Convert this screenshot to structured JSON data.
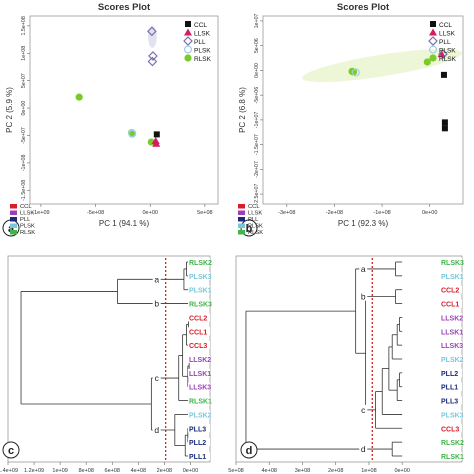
{
  "colors": {
    "CCL": "#111111",
    "LLSK": "#d81b60",
    "PLL": "#7b6fb0",
    "PLSK": "#9ecfe3",
    "RLSK": "#7acb2a",
    "dend_CCL": "#d71f2a",
    "dend_LLSK": "#9a3fb6",
    "dend_PLL": "#1b2a7c",
    "dend_PLSK": "#78c8dc",
    "dend_RLSK": "#3fb54a",
    "cutline": "#d01010",
    "plot_bg": "#ffffff",
    "border": "#9a9a9a"
  },
  "panel_labels": [
    "a",
    "b",
    "c",
    "d"
  ],
  "chart_data": [
    {
      "type": "scatter",
      "title": "Scores Plot",
      "xlabel": "PC 1 (94.1 %)",
      "ylabel": "PC 2 (5.9 %)",
      "xlim": [
        -1100000000.0,
        620000000.0
      ],
      "ylim": [
        -175000000.0,
        168000000.0
      ],
      "xticks": [
        -1000000000,
        -500000000,
        0,
        500000000
      ],
      "xtick_labels": [
        "-1e+09",
        "-5e+08",
        "0e+00",
        "5e+08"
      ],
      "yticks": [
        150000000,
        100000000,
        50000000,
        0,
        -50000000,
        -100000000,
        -150000000
      ],
      "ytick_labels": [
        "1.5e+08",
        "1e+08",
        "5e+07",
        "0e+00",
        "-5e+07",
        "-1e+08",
        "-1.5e+08"
      ],
      "legend": [
        "CCL",
        "LLSK",
        "PLL",
        "PLSK",
        "RLSK"
      ],
      "legend_position": "top-right",
      "ellipse": {
        "cx": 20000000,
        "cy": 130000000,
        "rx": 40000000,
        "ry": 20000000,
        "color": "#d6d6e8"
      },
      "points": [
        {
          "group": "RLSK",
          "x": -650000000,
          "y": 20000000
        },
        {
          "group": "RLSK",
          "x": -170000000,
          "y": -45000000
        },
        {
          "group": "RLSK",
          "x": -170000000,
          "y": -45000000
        },
        {
          "group": "RLSK",
          "x": 10000000,
          "y": -62000000
        },
        {
          "group": "PLSK",
          "x": -165000000,
          "y": -46000000
        },
        {
          "group": "PLSK",
          "x": -165000000,
          "y": -47000000
        },
        {
          "group": "PLL",
          "x": 15000000,
          "y": 140000000
        },
        {
          "group": "PLL",
          "x": 20000000,
          "y": 85000000
        },
        {
          "group": "PLL",
          "x": 25000000,
          "y": 95000000
        },
        {
          "group": "CCL",
          "x": 60000000,
          "y": -48000000
        },
        {
          "group": "LLSK",
          "x": 55000000,
          "y": -65000000
        },
        {
          "group": "LLSK",
          "x": 50000000,
          "y": -60000000
        }
      ]
    },
    {
      "type": "scatter",
      "title": "Scores Plot",
      "xlabel": "PC 1 (92.3 %)",
      "ylabel": "PC 2 (6.8 %)",
      "xlim": [
        -350000000.0,
        70000000.0
      ],
      "ylim": [
        -27000000.0,
        11000000.0
      ],
      "xticks": [
        -300000000,
        -200000000,
        -100000000,
        0
      ],
      "xtick_labels": [
        "-3e+08",
        "-2e+08",
        "-1e+08",
        "0e+00"
      ],
      "yticks": [
        10000000,
        5000000,
        0,
        -5000000,
        -10000000,
        -15000000,
        -20000000,
        -25000000
      ],
      "ytick_labels": [
        "1e+07",
        "5e+06",
        "0e+00",
        "-5e+06",
        "-1e+07",
        "-1.5e+07",
        "-2e+07",
        "-2.5e+07"
      ],
      "legend": [
        "CCL",
        "LLSK",
        "PLL",
        "PLSK",
        "RLSK"
      ],
      "legend_position": "top-right",
      "ellipse": {
        "cx": -100000000,
        "cy": 1000000,
        "rx": 170000000,
        "ry": 2200000,
        "color": "#e6f3c8",
        "angle": -9
      },
      "points": [
        {
          "group": "RLSK",
          "x": -160000000,
          "y": -300000
        },
        {
          "group": "RLSK",
          "x": -5000000,
          "y": 1700000
        },
        {
          "group": "RLSK",
          "x": -163000000,
          "y": -200000
        },
        {
          "group": "PLSK",
          "x": -155000000,
          "y": -400000
        },
        {
          "group": "LLSK",
          "x": 25000000,
          "y": 3300000
        },
        {
          "group": "PLL",
          "x": 28000000,
          "y": 3300000
        },
        {
          "group": "CCL",
          "x": 30000000,
          "y": -900000
        },
        {
          "group": "CCL",
          "x": 32000000,
          "y": -10500000
        },
        {
          "group": "CCL",
          "x": 32000000,
          "y": -11700000
        }
      ]
    },
    {
      "type": "dendrogram",
      "orientation": "horizontal",
      "xlim": [
        1400000000.0,
        -150000000.0
      ],
      "xticks": [
        1400000000,
        1200000000,
        1000000000,
        800000000,
        600000000,
        400000000,
        200000000,
        0
      ],
      "xtick_labels": [
        "1.4e+09",
        "1.2e+09",
        "1e+09",
        "8e+08",
        "6e+08",
        "4e+08",
        "2e+08",
        "0e+00"
      ],
      "cut_height": 190000000,
      "legend": [
        "CCL",
        "LLSK",
        "PLL",
        "PLSK",
        "RLSK"
      ],
      "legend_position": "top-left",
      "leaves": [
        {
          "label": "RLSK2",
          "group": "RLSK"
        },
        {
          "label": "PLSK3",
          "group": "PLSK"
        },
        {
          "label": "PLSK1",
          "group": "PLSK"
        },
        {
          "label": "RLSK3",
          "group": "RLSK"
        },
        {
          "label": "CCL2",
          "group": "CCL"
        },
        {
          "label": "CCL1",
          "group": "CCL"
        },
        {
          "label": "CCL3",
          "group": "CCL"
        },
        {
          "label": "LLSK2",
          "group": "LLSK"
        },
        {
          "label": "LLSK1",
          "group": "LLSK"
        },
        {
          "label": "LLSK3",
          "group": "LLSK"
        },
        {
          "label": "RLSK1",
          "group": "RLSK"
        },
        {
          "label": "PLSK2",
          "group": "PLSK"
        },
        {
          "label": "PLL3",
          "group": "PLL"
        },
        {
          "label": "PLL2",
          "group": "PLL"
        },
        {
          "label": "PLL1",
          "group": "PLL"
        }
      ],
      "merges": [
        [
          0,
          1,
          30000000
        ],
        [
          15,
          2,
          50000000
        ],
        [
          4,
          5,
          15000000
        ],
        [
          17,
          6,
          30000000
        ],
        [
          7,
          8,
          10000000
        ],
        [
          19,
          9,
          20000000
        ],
        [
          18,
          20,
          60000000
        ],
        [
          21,
          10,
          90000000
        ],
        [
          12,
          13,
          20000000
        ],
        [
          23,
          14,
          40000000
        ],
        [
          11,
          24,
          120000000
        ],
        [
          22,
          25,
          300000000
        ],
        [
          16,
          3,
          560000000
        ],
        [
          26,
          27,
          1300000000
        ]
      ],
      "cluster_labels": [
        {
          "text": "a",
          "node": 16
        },
        {
          "text": "b",
          "node": 3
        },
        {
          "text": "c",
          "node": 22
        },
        {
          "text": "d",
          "node": 25
        }
      ]
    },
    {
      "type": "dendrogram",
      "orientation": "horizontal",
      "xlim": [
        500000000.0,
        -180000000.0
      ],
      "xticks": [
        500000000,
        400000000,
        300000000,
        200000000,
        100000000,
        0
      ],
      "xtick_labels": [
        "5e+08",
        "4e+08",
        "3e+08",
        "2e+08",
        "1e+08",
        "0e+00"
      ],
      "cut_height": 90000000,
      "legend": [
        "CCL",
        "LLSK",
        "PLL",
        "PLSK",
        "RLSK"
      ],
      "legend_position": "top-left",
      "leaves": [
        {
          "label": "RLSK3",
          "group": "RLSK"
        },
        {
          "label": "PLSK1",
          "group": "PLSK"
        },
        {
          "label": "CCL2",
          "group": "CCL"
        },
        {
          "label": "CCL1",
          "group": "CCL"
        },
        {
          "label": "LLSK2",
          "group": "LLSK"
        },
        {
          "label": "LLSK1",
          "group": "LLSK"
        },
        {
          "label": "LLSK3",
          "group": "LLSK"
        },
        {
          "label": "PLSK2",
          "group": "PLSK"
        },
        {
          "label": "PLL2",
          "group": "PLL"
        },
        {
          "label": "PLL1",
          "group": "PLL"
        },
        {
          "label": "PLL3",
          "group": "PLL"
        },
        {
          "label": "PLSK3",
          "group": "PLSK"
        },
        {
          "label": "CCL3",
          "group": "CCL"
        },
        {
          "label": "RLSK2",
          "group": "RLSK"
        },
        {
          "label": "RLSK1",
          "group": "RLSK"
        }
      ],
      "merges": [
        [
          0,
          1,
          20000000
        ],
        [
          2,
          3,
          20000000
        ],
        [
          4,
          5,
          8000000
        ],
        [
          17,
          6,
          15000000
        ],
        [
          18,
          7,
          30000000
        ],
        [
          8,
          9,
          8000000
        ],
        [
          20,
          10,
          15000000
        ],
        [
          19,
          21,
          40000000
        ],
        [
          22,
          11,
          60000000
        ],
        [
          23,
          12,
          80000000
        ],
        [
          16,
          24,
          110000000
        ],
        [
          15,
          25,
          140000000
        ],
        [
          13,
          14,
          30000000
        ],
        [
          26,
          27,
          470000000
        ]
      ],
      "cluster_labels": [
        {
          "text": "a",
          "node": 15
        },
        {
          "text": "b",
          "node": 16
        },
        {
          "text": "c",
          "node": 24
        },
        {
          "text": "d",
          "node": 27
        }
      ]
    }
  ]
}
